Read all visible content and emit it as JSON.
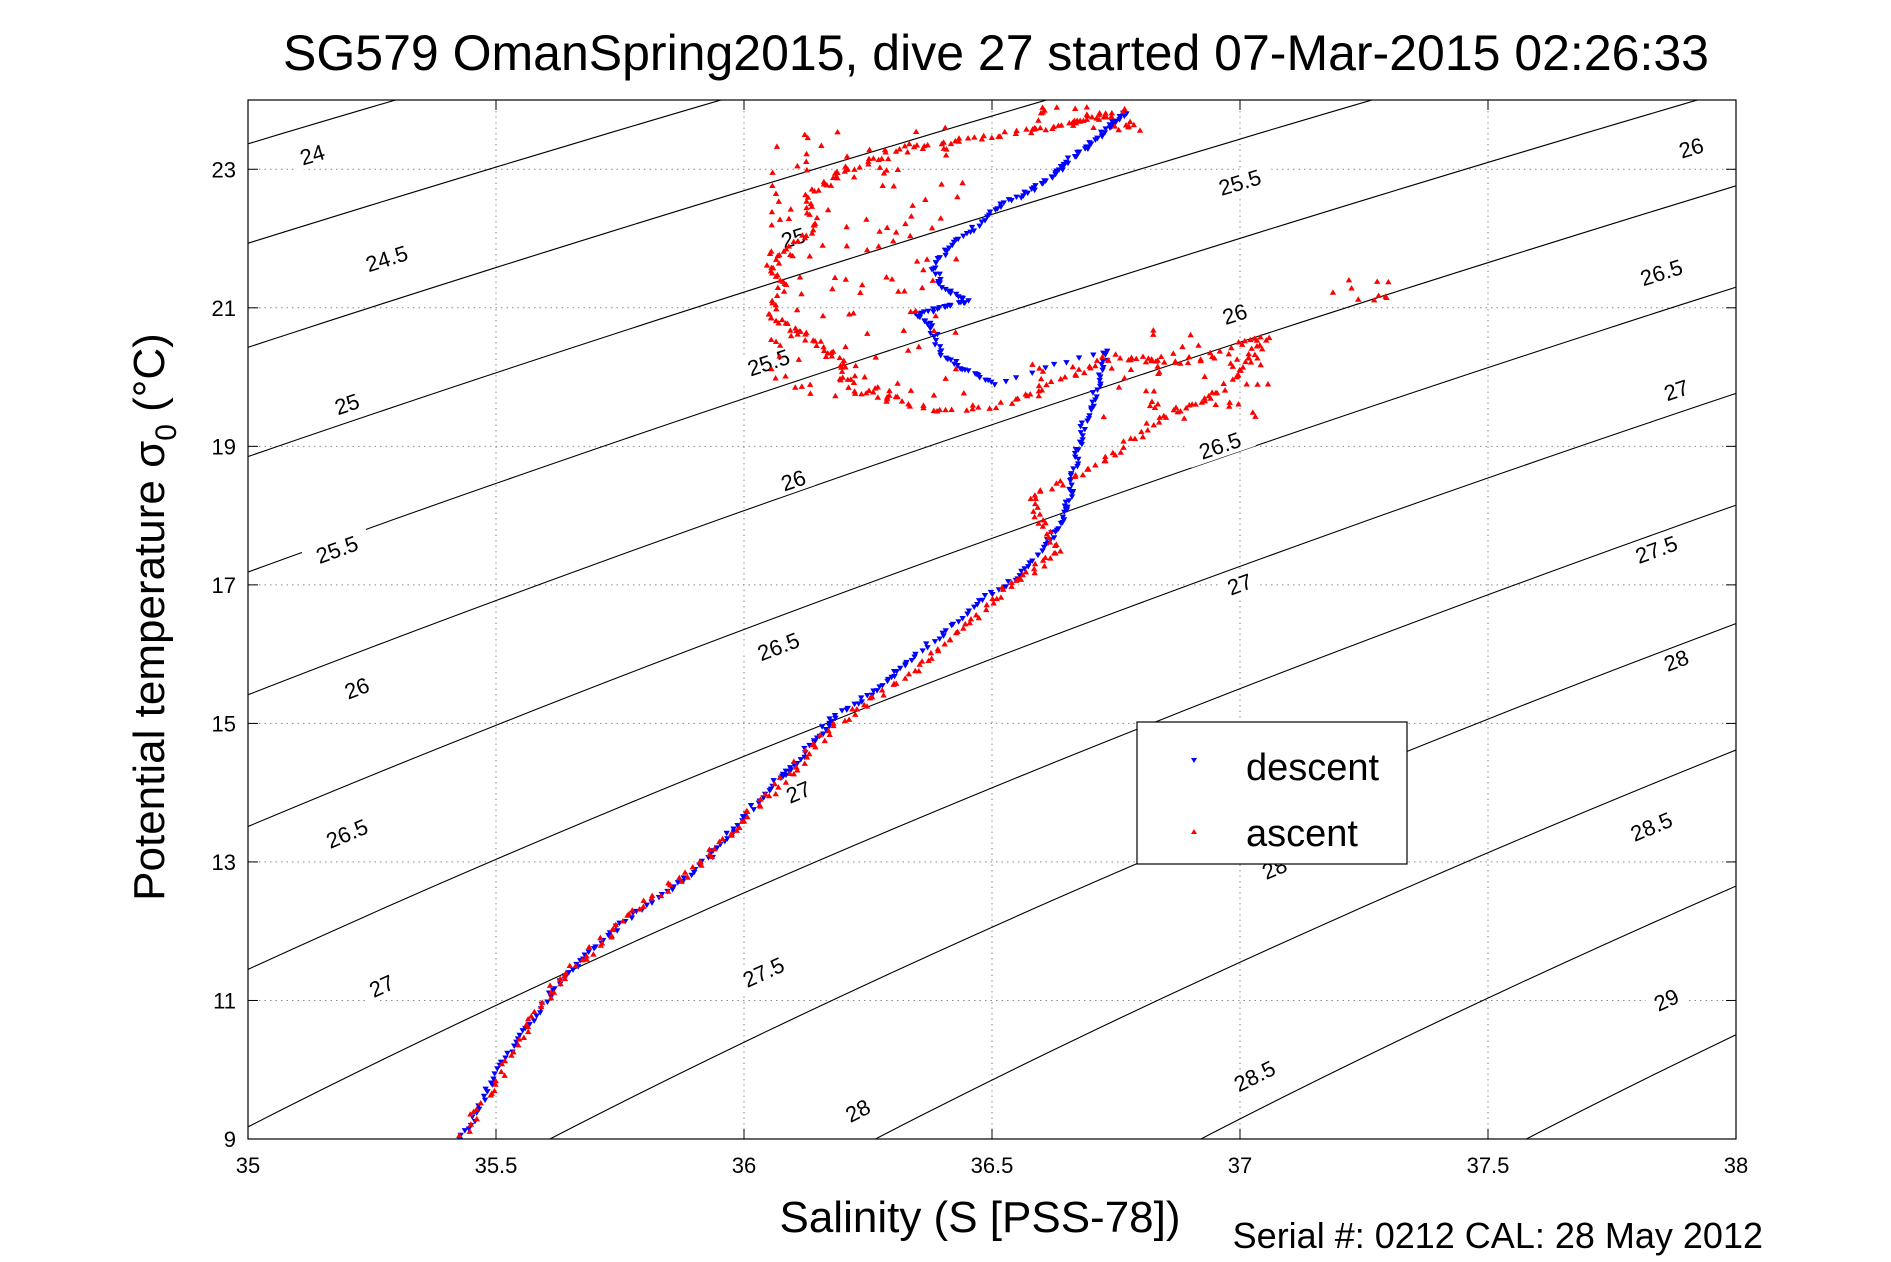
{
  "chart_data": {
    "type": "scatter",
    "title": "SG579 OmanSpring2015, dive 27 started 07-Mar-2015 02:26:33",
    "xlabel": "Salinity (S [PSS-78])",
    "ylabel_main": "Potential temperature σ",
    "ylabel_sub": "0",
    "ylabel_unit": " (°C)",
    "footer": "Serial #: 0212  CAL: 28 May 2012",
    "xlim": [
      35,
      38
    ],
    "ylim": [
      9,
      24
    ],
    "x_ticks": [
      {
        "value": 35,
        "label": "35"
      },
      {
        "value": 35.5,
        "label": "35.5"
      },
      {
        "value": 36,
        "label": "36"
      },
      {
        "value": 36.5,
        "label": "36.5"
      },
      {
        "value": 37,
        "label": "37"
      },
      {
        "value": 37.5,
        "label": "37.5"
      },
      {
        "value": 38,
        "label": "38"
      }
    ],
    "y_ticks": [
      {
        "value": 9,
        "label": "9"
      },
      {
        "value": 11,
        "label": "11"
      },
      {
        "value": 13,
        "label": "13"
      },
      {
        "value": 15,
        "label": "15"
      },
      {
        "value": 17,
        "label": "17"
      },
      {
        "value": 19,
        "label": "19"
      },
      {
        "value": 21,
        "label": "21"
      },
      {
        "value": 23,
        "label": "23"
      }
    ],
    "grid": true,
    "grid_style": "dotted",
    "legend_position": "inside, right of center",
    "series": [
      {
        "name": "descent",
        "color": "#0000ff",
        "marker": "triangle-down"
      },
      {
        "name": "ascent",
        "color": "#ff0000",
        "marker": "triangle-up"
      }
    ],
    "descent_trace": [
      [
        35.43,
        9.0
      ],
      [
        35.47,
        9.5
      ],
      [
        35.5,
        10.0
      ],
      [
        35.55,
        10.5
      ],
      [
        35.6,
        11.0
      ],
      [
        35.65,
        11.4
      ],
      [
        35.7,
        11.8
      ],
      [
        35.77,
        12.2
      ],
      [
        35.85,
        12.6
      ],
      [
        35.92,
        13.0
      ],
      [
        35.97,
        13.4
      ],
      [
        36.02,
        13.8
      ],
      [
        36.07,
        14.2
      ],
      [
        36.1,
        14.4
      ],
      [
        36.15,
        14.8
      ],
      [
        36.18,
        15.1
      ],
      [
        36.25,
        15.4
      ],
      [
        36.3,
        15.7
      ],
      [
        36.35,
        16.0
      ],
      [
        36.42,
        16.4
      ],
      [
        36.48,
        16.8
      ],
      [
        36.55,
        17.1
      ],
      [
        36.6,
        17.5
      ],
      [
        36.63,
        17.8
      ],
      [
        36.65,
        18.1
      ],
      [
        36.66,
        18.4
      ],
      [
        36.67,
        18.8
      ],
      [
        36.68,
        19.2
      ],
      [
        36.7,
        19.6
      ],
      [
        36.72,
        20.0
      ],
      [
        36.73,
        20.4
      ],
      [
        36.5,
        19.9
      ],
      [
        36.45,
        20.1
      ],
      [
        36.4,
        20.3
      ],
      [
        36.38,
        20.7
      ],
      [
        36.35,
        20.9
      ],
      [
        36.4,
        21.0
      ],
      [
        36.45,
        21.1
      ],
      [
        36.4,
        21.3
      ],
      [
        36.38,
        21.6
      ],
      [
        36.42,
        21.9
      ],
      [
        36.47,
        22.2
      ],
      [
        36.52,
        22.5
      ],
      [
        36.58,
        22.7
      ],
      [
        36.62,
        22.9
      ],
      [
        36.65,
        23.1
      ],
      [
        36.69,
        23.3
      ],
      [
        36.72,
        23.5
      ],
      [
        36.75,
        23.7
      ],
      [
        36.77,
        23.85
      ]
    ],
    "ascent_trace": [
      [
        35.43,
        9.0
      ],
      [
        35.48,
        9.6
      ],
      [
        35.53,
        10.2
      ],
      [
        35.58,
        10.8
      ],
      [
        35.63,
        11.3
      ],
      [
        35.69,
        11.7
      ],
      [
        35.75,
        12.1
      ],
      [
        35.82,
        12.5
      ],
      [
        35.9,
        12.9
      ],
      [
        35.96,
        13.3
      ],
      [
        36.01,
        13.7
      ],
      [
        36.07,
        14.1
      ],
      [
        36.12,
        14.5
      ],
      [
        36.17,
        14.9
      ],
      [
        36.25,
        15.3
      ],
      [
        36.33,
        15.7
      ],
      [
        36.4,
        16.1
      ],
      [
        36.46,
        16.5
      ],
      [
        36.52,
        16.9
      ],
      [
        36.58,
        17.2
      ],
      [
        36.63,
        17.5
      ],
      [
        36.6,
        17.9
      ],
      [
        36.58,
        18.3
      ],
      [
        36.68,
        18.6
      ],
      [
        36.75,
        18.9
      ],
      [
        36.82,
        19.3
      ],
      [
        36.9,
        19.6
      ],
      [
        36.96,
        19.8
      ],
      [
        37.02,
        20.2
      ],
      [
        37.05,
        20.6
      ],
      [
        36.95,
        20.3
      ],
      [
        36.85,
        20.2
      ],
      [
        36.75,
        20.3
      ],
      [
        36.62,
        19.9
      ],
      [
        36.52,
        19.6
      ],
      [
        36.4,
        19.5
      ],
      [
        36.3,
        19.7
      ],
      [
        36.22,
        19.8
      ],
      [
        36.2,
        20.2
      ],
      [
        36.15,
        20.5
      ],
      [
        36.1,
        20.7
      ],
      [
        36.05,
        20.9
      ],
      [
        36.08,
        21.3
      ],
      [
        36.05,
        21.6
      ],
      [
        36.1,
        21.9
      ],
      [
        36.15,
        22.2
      ],
      [
        36.12,
        22.6
      ],
      [
        36.18,
        22.9
      ],
      [
        36.25,
        23.1
      ],
      [
        36.33,
        23.3
      ],
      [
        36.42,
        23.4
      ],
      [
        36.52,
        23.5
      ],
      [
        36.62,
        23.6
      ],
      [
        36.7,
        23.75
      ],
      [
        36.77,
        23.85
      ]
    ],
    "ascent_clusters": [
      {
        "x": [
          36.05,
          36.45
        ],
        "y": [
          19.6,
          23.6
        ],
        "count": 130
      },
      {
        "x": [
          36.55,
          36.85
        ],
        "y": [
          19.3,
          20.3
        ],
        "count": 28
      },
      {
        "x": [
          36.82,
          37.06
        ],
        "y": [
          19.4,
          20.7
        ],
        "count": 35
      },
      {
        "x": [
          37.18,
          37.32
        ],
        "y": [
          21.1,
          21.5
        ],
        "count": 10
      },
      {
        "x": [
          36.58,
          36.8
        ],
        "y": [
          23.55,
          23.9
        ],
        "count": 30
      }
    ],
    "contour_labels": [
      {
        "text": "24",
        "s": 35.13,
        "t": 23.2
      },
      {
        "text": "24.5",
        "s": 35.28,
        "t": 21.7
      },
      {
        "text": "25",
        "s": 35.2,
        "t": 19.6
      },
      {
        "text": "25.5",
        "s": 35.18,
        "t": 17.5
      },
      {
        "text": "26",
        "s": 35.22,
        "t": 15.5
      },
      {
        "text": "26.5",
        "s": 35.2,
        "t": 13.4
      },
      {
        "text": "27",
        "s": 35.27,
        "t": 11.2
      },
      {
        "text": "25",
        "s": 36.1,
        "t": 22.0
      },
      {
        "text": "25.5",
        "s": 36.05,
        "t": 20.2
      },
      {
        "text": "26",
        "s": 36.1,
        "t": 18.5
      },
      {
        "text": "26.5",
        "s": 36.07,
        "t": 16.1
      },
      {
        "text": "27",
        "s": 36.11,
        "t": 14.0
      },
      {
        "text": "27.5",
        "s": 36.04,
        "t": 11.4
      },
      {
        "text": "28",
        "s": 36.23,
        "t": 9.4
      },
      {
        "text": "25.5",
        "s": 37.0,
        "t": 22.8
      },
      {
        "text": "26",
        "s": 36.99,
        "t": 20.9
      },
      {
        "text": "26.5",
        "s": 36.96,
        "t": 19.0
      },
      {
        "text": "27",
        "s": 37.0,
        "t": 17.0
      },
      {
        "text": "28",
        "s": 37.07,
        "t": 12.9
      },
      {
        "text": "28.5",
        "s": 37.03,
        "t": 9.9
      },
      {
        "text": "26",
        "s": 37.91,
        "t": 23.3
      },
      {
        "text": "26.5",
        "s": 37.85,
        "t": 21.5
      },
      {
        "text": "27",
        "s": 37.88,
        "t": 19.8
      },
      {
        "text": "27.5",
        "s": 37.84,
        "t": 17.5
      },
      {
        "text": "28",
        "s": 37.88,
        "t": 15.9
      },
      {
        "text": "28.5",
        "s": 37.83,
        "t": 13.5
      },
      {
        "text": "29",
        "s": 37.86,
        "t": 11.0
      }
    ]
  }
}
